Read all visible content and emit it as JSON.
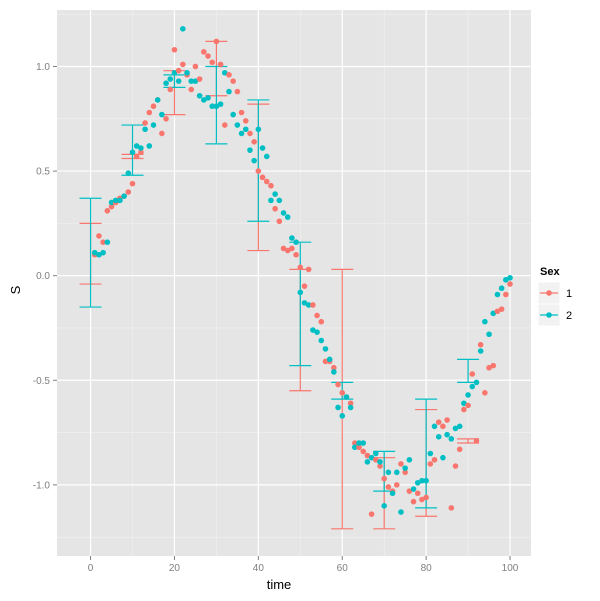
{
  "chart_data": {
    "type": "scatter",
    "xlabel": "time",
    "ylabel": "S",
    "xlim": [
      -8,
      105
    ],
    "ylim": [
      -1.34,
      1.27
    ],
    "x_ticks": [
      0,
      20,
      40,
      60,
      80,
      100
    ],
    "y_ticks": [
      -1.0,
      -0.5,
      0.0,
      0.5,
      1.0
    ],
    "x_tick_labels": [
      "0",
      "20",
      "40",
      "60",
      "80",
      "100"
    ],
    "y_tick_labels": [
      "-1.0",
      "-0.5",
      "0.0",
      "0.5",
      "1.0"
    ],
    "grid": true,
    "legend": {
      "title": "Sex",
      "position": "right"
    },
    "series": [
      {
        "name": "1",
        "color": "#F8766D",
        "points": [
          [
            1,
            0.1
          ],
          [
            2,
            0.19
          ],
          [
            3,
            0.16
          ],
          [
            4,
            0.31
          ],
          [
            5,
            0.33
          ],
          [
            6,
            0.35
          ],
          [
            7,
            0.37
          ],
          [
            8,
            0.38
          ],
          [
            9,
            0.4
          ],
          [
            10,
            0.44
          ],
          [
            11,
            0.57
          ],
          [
            12,
            0.59
          ],
          [
            13,
            0.73
          ],
          [
            14,
            0.78
          ],
          [
            15,
            0.81
          ],
          [
            16,
            0.84
          ],
          [
            17,
            0.68
          ],
          [
            18,
            0.75
          ],
          [
            19,
            0.89
          ],
          [
            20,
            1.08
          ],
          [
            21,
            0.98
          ],
          [
            22,
            1.01
          ],
          [
            23,
            0.96
          ],
          [
            24,
            0.89
          ],
          [
            25,
            1.0
          ],
          [
            26,
            0.94
          ],
          [
            27,
            1.07
          ],
          [
            28,
            1.05
          ],
          [
            29,
            1.02
          ],
          [
            30,
            1.12
          ],
          [
            31,
            1.01
          ],
          [
            32,
            0.72
          ],
          [
            33,
            0.96
          ],
          [
            34,
            0.93
          ],
          [
            35,
            0.88
          ],
          [
            36,
            0.78
          ],
          [
            37,
            0.74
          ],
          [
            38,
            0.68
          ],
          [
            39,
            0.64
          ],
          [
            40,
            0.5
          ],
          [
            41,
            0.47
          ],
          [
            42,
            0.45
          ],
          [
            43,
            0.43
          ],
          [
            44,
            0.32
          ],
          [
            45,
            0.26
          ],
          [
            46,
            0.13
          ],
          [
            47,
            0.12
          ],
          [
            48,
            0.13
          ],
          [
            49,
            0.1
          ],
          [
            50,
            0.04
          ],
          [
            51,
            -0.05
          ],
          [
            52,
            0.03
          ],
          [
            53,
            -0.14
          ],
          [
            54,
            -0.19
          ],
          [
            55,
            -0.22
          ],
          [
            56,
            -0.41
          ],
          [
            57,
            -0.41
          ],
          [
            58,
            -0.44
          ],
          [
            59,
            -0.52
          ],
          [
            60,
            -0.56
          ],
          [
            61,
            -0.58
          ],
          [
            62,
            -0.61
          ],
          [
            63,
            -0.8
          ],
          [
            64,
            -0.82
          ],
          [
            65,
            -0.84
          ],
          [
            66,
            -0.86
          ],
          [
            67,
            -1.14
          ],
          [
            68,
            -0.88
          ],
          [
            69,
            -0.91
          ],
          [
            70,
            -0.97
          ],
          [
            71,
            -1.01
          ],
          [
            72,
            -1.03
          ],
          [
            73,
            -1.0
          ],
          [
            74,
            -0.9
          ],
          [
            75,
            -0.94
          ],
          [
            76,
            -1.03
          ],
          [
            77,
            -1.08
          ],
          [
            78,
            -1.04
          ],
          [
            79,
            -1.07
          ],
          [
            80,
            -1.06
          ],
          [
            81,
            -0.9
          ],
          [
            82,
            -0.88
          ],
          [
            83,
            -0.7
          ],
          [
            84,
            -0.72
          ],
          [
            85,
            -0.69
          ],
          [
            86,
            -1.11
          ],
          [
            87,
            -0.91
          ],
          [
            88,
            -0.83
          ],
          [
            89,
            -0.64
          ],
          [
            90,
            -0.62
          ],
          [
            91,
            -0.47
          ],
          [
            92,
            -0.79
          ],
          [
            93,
            -0.33
          ],
          [
            94,
            -0.56
          ],
          [
            95,
            -0.44
          ],
          [
            96,
            -0.43
          ],
          [
            97,
            -0.17
          ],
          [
            98,
            -0.16
          ],
          [
            99,
            -0.09
          ],
          [
            100,
            -0.04
          ]
        ],
        "errorbars": [
          {
            "x": 0,
            "low": -0.04,
            "high": 0.25
          },
          {
            "x": 10,
            "low": 0.56,
            "high": 0.58
          },
          {
            "x": 20,
            "low": 0.77,
            "high": 0.98
          },
          {
            "x": 30,
            "low": 0.86,
            "high": 1.12
          },
          {
            "x": 40,
            "low": 0.12,
            "high": 0.82
          },
          {
            "x": 50,
            "low": -0.55,
            "high": 0.03
          },
          {
            "x": 60,
            "low": -1.21,
            "high": 0.03
          },
          {
            "x": 70,
            "low": -1.21,
            "high": -0.87
          },
          {
            "x": 80,
            "low": -1.15,
            "high": -0.64
          },
          {
            "x": 90,
            "low": -0.8,
            "high": -0.78
          }
        ]
      },
      {
        "name": "2",
        "color": "#00BFC4",
        "points": [
          [
            1,
            0.11
          ],
          [
            2,
            0.1
          ],
          [
            3,
            0.11
          ],
          [
            4,
            0.16
          ],
          [
            5,
            0.35
          ],
          [
            6,
            0.36
          ],
          [
            7,
            0.36
          ],
          [
            8,
            0.38
          ],
          [
            9,
            0.49
          ],
          [
            10,
            0.59
          ],
          [
            11,
            0.62
          ],
          [
            12,
            0.61
          ],
          [
            13,
            0.7
          ],
          [
            14,
            0.62
          ],
          [
            15,
            0.72
          ],
          [
            16,
            0.84
          ],
          [
            17,
            0.77
          ],
          [
            18,
            0.92
          ],
          [
            19,
            0.94
          ],
          [
            20,
            0.97
          ],
          [
            21,
            0.93
          ],
          [
            22,
            1.18
          ],
          [
            23,
            0.97
          ],
          [
            24,
            0.93
          ],
          [
            25,
            0.93
          ],
          [
            26,
            0.86
          ],
          [
            27,
            0.84
          ],
          [
            28,
            0.85
          ],
          [
            29,
            0.81
          ],
          [
            30,
            0.81
          ],
          [
            31,
            0.82
          ],
          [
            32,
            0.97
          ],
          [
            33,
            0.88
          ],
          [
            34,
            0.77
          ],
          [
            35,
            0.72
          ],
          [
            36,
            0.68
          ],
          [
            37,
            0.7
          ],
          [
            38,
            0.6
          ],
          [
            39,
            0.55
          ],
          [
            40,
            0.7
          ],
          [
            41,
            0.61
          ],
          [
            42,
            0.57
          ],
          [
            43,
            0.36
          ],
          [
            44,
            0.39
          ],
          [
            45,
            0.36
          ],
          [
            46,
            0.3
          ],
          [
            47,
            0.28
          ],
          [
            48,
            0.18
          ],
          [
            49,
            0.16
          ],
          [
            50,
            -0.08
          ],
          [
            51,
            -0.13
          ],
          [
            52,
            -0.14
          ],
          [
            53,
            -0.26
          ],
          [
            54,
            -0.27
          ],
          [
            55,
            -0.31
          ],
          [
            56,
            -0.35
          ],
          [
            57,
            -0.4
          ],
          [
            58,
            -0.46
          ],
          [
            59,
            -0.63
          ],
          [
            60,
            -0.67
          ],
          [
            61,
            -0.58
          ],
          [
            62,
            -0.63
          ],
          [
            63,
            -0.82
          ],
          [
            64,
            -0.8
          ],
          [
            65,
            -0.8
          ],
          [
            66,
            -0.89
          ],
          [
            67,
            -0.87
          ],
          [
            68,
            -0.85
          ],
          [
            69,
            -0.89
          ],
          [
            70,
            -1.1
          ],
          [
            71,
            -0.94
          ],
          [
            72,
            -1.04
          ],
          [
            73,
            -0.94
          ],
          [
            74,
            -1.13
          ],
          [
            75,
            -0.92
          ],
          [
            76,
            -0.88
          ],
          [
            77,
            -1.02
          ],
          [
            78,
            -0.99
          ],
          [
            79,
            -0.98
          ],
          [
            80,
            -0.98
          ],
          [
            81,
            -0.85
          ],
          [
            82,
            -0.72
          ],
          [
            83,
            -0.77
          ],
          [
            84,
            -0.87
          ],
          [
            85,
            -0.76
          ],
          [
            86,
            -0.78
          ],
          [
            87,
            -0.73
          ],
          [
            88,
            -0.72
          ],
          [
            89,
            -0.61
          ],
          [
            90,
            -0.57
          ],
          [
            91,
            -0.53
          ],
          [
            92,
            -0.51
          ],
          [
            93,
            -0.36
          ],
          [
            94,
            -0.22
          ],
          [
            95,
            -0.28
          ],
          [
            96,
            -0.18
          ],
          [
            97,
            -0.09
          ],
          [
            98,
            -0.06
          ],
          [
            99,
            -0.02
          ],
          [
            100,
            -0.01
          ]
        ],
        "errorbars": [
          {
            "x": 0,
            "low": -0.15,
            "high": 0.37
          },
          {
            "x": 10,
            "low": 0.48,
            "high": 0.72
          },
          {
            "x": 20,
            "low": 0.9,
            "high": 0.96
          },
          {
            "x": 30,
            "low": 0.63,
            "high": 1.0
          },
          {
            "x": 40,
            "low": 0.26,
            "high": 0.84
          },
          {
            "x": 50,
            "low": -0.43,
            "high": 0.16
          },
          {
            "x": 60,
            "low": -0.59,
            "high": -0.51
          },
          {
            "x": 70,
            "low": -1.03,
            "high": -0.84
          },
          {
            "x": 80,
            "low": -1.11,
            "high": -0.59
          },
          {
            "x": 90,
            "low": -0.51,
            "high": -0.4
          }
        ]
      }
    ]
  }
}
